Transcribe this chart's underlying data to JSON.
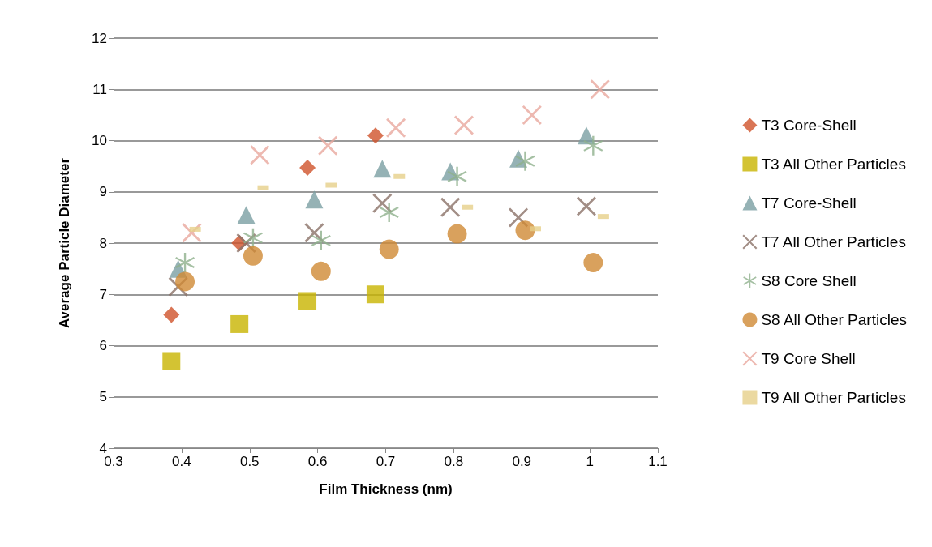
{
  "chart_data": {
    "type": "scatter",
    "xlabel": "Film Thickness (nm)",
    "ylabel": "Average Particle Diameter",
    "xlim": [
      0.3,
      1.1
    ],
    "xticks": [
      0.3,
      0.4,
      0.5,
      0.6,
      0.7,
      0.8,
      0.9,
      1,
      1.1
    ],
    "ylim": [
      4,
      12
    ],
    "yticks": [
      4,
      5,
      6,
      7,
      8,
      9,
      10,
      11,
      12
    ],
    "grid": "y",
    "legend": "right",
    "series": [
      {
        "name": "T3 Core-Shell",
        "color": "#d0532b",
        "marker": "diamond",
        "x": [
          0.385,
          0.485,
          0.585,
          0.685
        ],
        "values": [
          6.6,
          8.0,
          9.47,
          10.1
        ]
      },
      {
        "name": "T3 All Other Particles",
        "color": "#c8b400",
        "marker": "square",
        "x": [
          0.385,
          0.485,
          0.585,
          0.685
        ],
        "values": [
          5.7,
          6.42,
          6.87,
          7.0
        ]
      },
      {
        "name": "T7 Core-Shell",
        "color": "#7a9fa3",
        "marker": "triangle",
        "x": [
          0.395,
          0.495,
          0.595,
          0.695,
          0.795,
          0.895,
          0.995
        ],
        "values": [
          7.5,
          8.55,
          8.85,
          9.45,
          9.4,
          9.65,
          10.1
        ]
      },
      {
        "name": "T7 All Other Particles",
        "color": "#8b7268",
        "marker": "cross",
        "x": [
          0.395,
          0.495,
          0.595,
          0.695,
          0.795,
          0.895,
          0.995
        ],
        "values": [
          7.15,
          8.0,
          8.2,
          8.78,
          8.7,
          8.5,
          8.72
        ]
      },
      {
        "name": "S8 Core Shell",
        "color": "#8fb08c",
        "marker": "star",
        "x": [
          0.405,
          0.505,
          0.605,
          0.705,
          0.805,
          0.905,
          1.005
        ],
        "values": [
          7.62,
          8.1,
          8.05,
          8.6,
          9.3,
          9.6,
          9.9
        ]
      },
      {
        "name": "S8 All Other Particles",
        "color": "#d08a35",
        "marker": "circle",
        "x": [
          0.405,
          0.505,
          0.605,
          0.705,
          0.805,
          0.905,
          1.005
        ],
        "values": [
          7.25,
          7.75,
          7.45,
          7.88,
          8.18,
          8.25,
          7.62
        ]
      },
      {
        "name": "T9 Core Shell",
        "color": "#e8a89e",
        "marker": "cross",
        "x": [
          0.415,
          0.515,
          0.615,
          0.715,
          0.815,
          0.915,
          1.015
        ],
        "values": [
          8.2,
          9.72,
          9.9,
          10.25,
          10.3,
          10.5,
          11.0
        ]
      },
      {
        "name": "T9 All Other Particles",
        "color": "#e6d08a",
        "marker": "square",
        "x": [
          0.42,
          0.52,
          0.62,
          0.72,
          0.82,
          0.92,
          1.02
        ],
        "values": [
          8.27,
          9.08,
          9.13,
          9.3,
          8.7,
          8.28,
          8.52
        ]
      }
    ]
  }
}
